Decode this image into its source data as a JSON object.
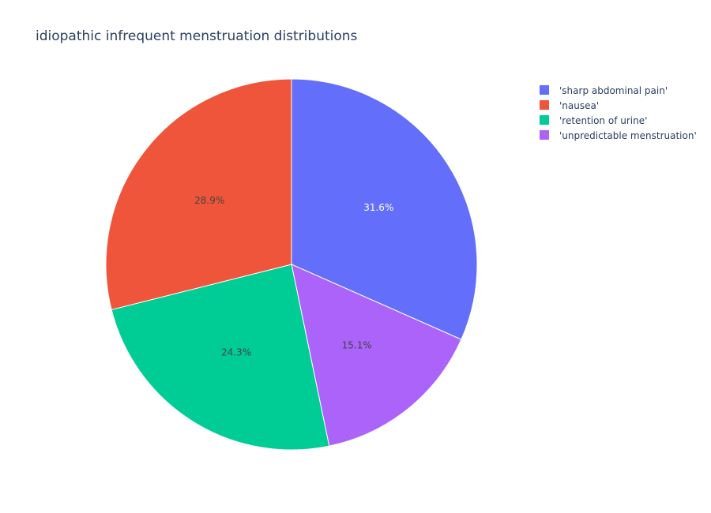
{
  "chart_data": {
    "type": "pie",
    "title": "idiopathic infrequent menstruation distributions",
    "slices": [
      {
        "label": "'sharp abdominal pain'",
        "value": 31.6,
        "display": "31.6%",
        "color": "#636efa",
        "label_color": "#ffffff"
      },
      {
        "label": "'unpredictable menstruation'",
        "value": 15.1,
        "display": "15.1%",
        "color": "#ab63fa",
        "label_color": "#444444"
      },
      {
        "label": "'retention of urine'",
        "value": 24.3,
        "display": "24.3%",
        "color": "#00cc96",
        "label_color": "#444444"
      },
      {
        "label": "'nausea'",
        "value": 28.9,
        "display": "28.9%",
        "color": "#ef553b",
        "label_color": "#444444"
      }
    ],
    "legend": {
      "position": "top-right",
      "items": [
        {
          "label": "'sharp abdominal pain'",
          "color": "#636efa"
        },
        {
          "label": "'nausea'",
          "color": "#ef553b"
        },
        {
          "label": "'retention of urine'",
          "color": "#00cc96"
        },
        {
          "label": "'unpredictable menstruation'",
          "color": "#ab63fa"
        }
      ]
    },
    "direction": "clockwise",
    "start_angle": "12 o'clock"
  }
}
